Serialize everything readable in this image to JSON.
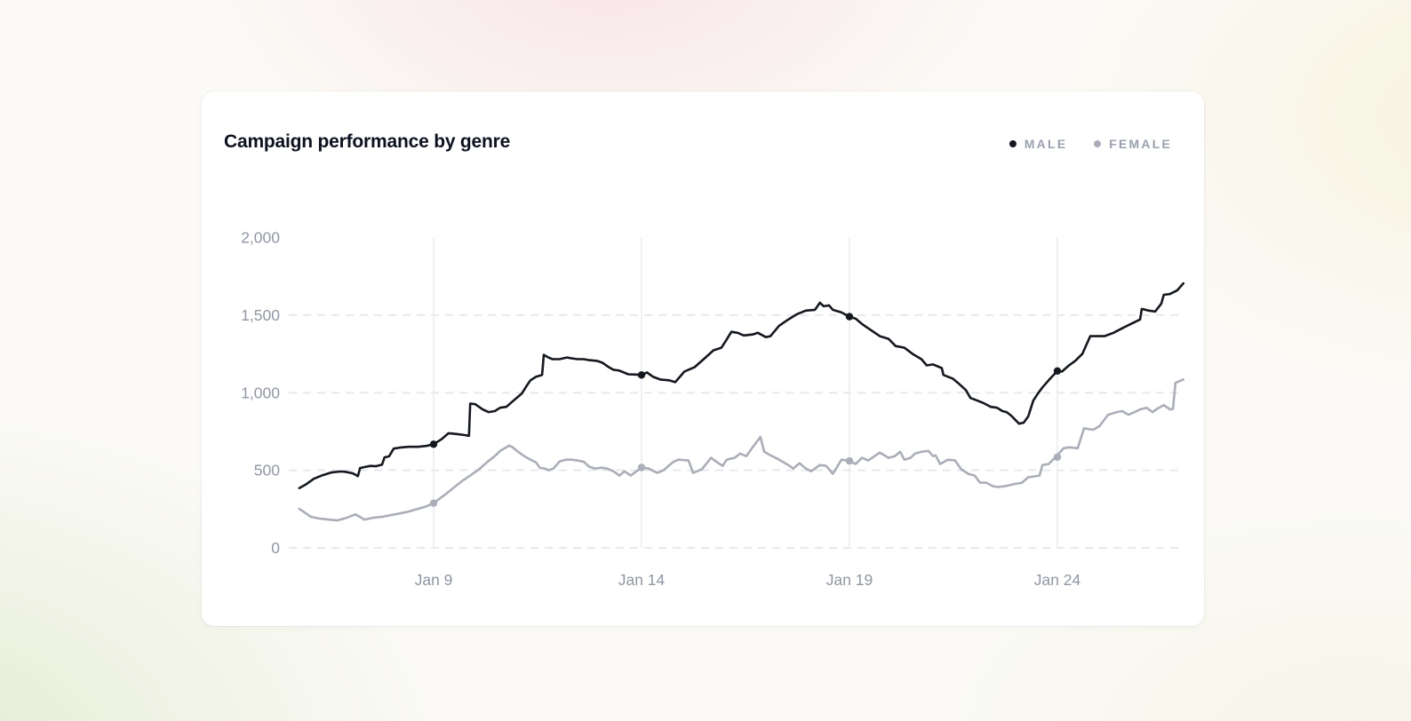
{
  "page": {
    "background_tints": {
      "pink": "#f6cdd8",
      "cream": "#f4eecb",
      "green": "#d3e1ba",
      "base": "#fbfaf6"
    }
  },
  "card": {
    "title": "Campaign performance by genre",
    "legend": [
      {
        "label": "MALE",
        "color": "#14181f"
      },
      {
        "label": "FEMALE",
        "color": "#a9aeb8"
      }
    ]
  },
  "chart_data": {
    "type": "line",
    "title": "Campaign performance by genre",
    "xlabel": "",
    "ylabel": "",
    "x_unit": "date (January, fractional day = intraday sample)",
    "xlim": [
      5.75,
      27.05
    ],
    "ylim": [
      0,
      2000
    ],
    "legend_position": "top-right",
    "grid": {
      "horizontal": "dashed",
      "vertical": "solid at x ticks only",
      "no_gridline_at": 2000
    },
    "x_ticks": [
      {
        "day": 9,
        "label": "Jan 9"
      },
      {
        "day": 14,
        "label": "Jan 14"
      },
      {
        "day": 19,
        "label": "Jan 19"
      },
      {
        "day": 24,
        "label": "Jan 24"
      }
    ],
    "y_ticks": [
      {
        "value": 0,
        "label": "0"
      },
      {
        "value": 500,
        "label": "500"
      },
      {
        "value": 1000,
        "label": "1,000"
      },
      {
        "value": 1500,
        "label": "1,500"
      },
      {
        "value": 2000,
        "label": "2,000"
      }
    ],
    "h_grid_values": [
      0,
      500,
      1000,
      1500
    ],
    "colors": {
      "grid_dashed": "#e6e9ee",
      "grid_solid": "#e9ebef",
      "axis_text": "#8f97a6"
    },
    "series": [
      {
        "name": "MALE",
        "color": "#14181f",
        "markers": [
          [
            9,
            668
          ],
          [
            14,
            1114
          ],
          [
            19,
            1490
          ],
          [
            24,
            1140
          ]
        ],
        "points": [
          [
            5.77,
            385
          ],
          [
            5.94,
            411
          ],
          [
            6.12,
            445
          ],
          [
            6.33,
            468
          ],
          [
            6.54,
            486
          ],
          [
            6.76,
            492
          ],
          [
            6.86,
            491
          ],
          [
            7.06,
            480
          ],
          [
            7.18,
            462
          ],
          [
            7.23,
            514
          ],
          [
            7.33,
            520
          ],
          [
            7.48,
            528
          ],
          [
            7.61,
            526
          ],
          [
            7.76,
            537
          ],
          [
            7.82,
            583
          ],
          [
            7.93,
            590
          ],
          [
            8.04,
            640
          ],
          [
            8.19,
            646
          ],
          [
            8.4,
            651
          ],
          [
            8.62,
            651
          ],
          [
            8.83,
            657
          ],
          [
            9.0,
            668
          ],
          [
            9.19,
            700
          ],
          [
            9.36,
            739
          ],
          [
            9.58,
            733
          ],
          [
            9.75,
            727
          ],
          [
            9.85,
            722
          ],
          [
            9.88,
            930
          ],
          [
            10.0,
            926
          ],
          [
            10.18,
            892
          ],
          [
            10.32,
            875
          ],
          [
            10.47,
            881
          ],
          [
            10.6,
            903
          ],
          [
            10.75,
            909
          ],
          [
            10.92,
            949
          ],
          [
            11.12,
            994
          ],
          [
            11.24,
            1045
          ],
          [
            11.33,
            1080
          ],
          [
            11.46,
            1102
          ],
          [
            11.61,
            1114
          ],
          [
            11.65,
            1244
          ],
          [
            11.76,
            1227
          ],
          [
            11.86,
            1216
          ],
          [
            12.03,
            1216
          ],
          [
            12.21,
            1227
          ],
          [
            12.31,
            1222
          ],
          [
            12.46,
            1216
          ],
          [
            12.61,
            1216
          ],
          [
            12.74,
            1210
          ],
          [
            12.93,
            1205
          ],
          [
            13.06,
            1193
          ],
          [
            13.21,
            1165
          ],
          [
            13.32,
            1148
          ],
          [
            13.47,
            1142
          ],
          [
            13.68,
            1119
          ],
          [
            13.85,
            1117
          ],
          [
            14.0,
            1114
          ],
          [
            14.13,
            1131
          ],
          [
            14.28,
            1102
          ],
          [
            14.45,
            1085
          ],
          [
            14.66,
            1080
          ],
          [
            14.81,
            1068
          ],
          [
            15.03,
            1136
          ],
          [
            15.13,
            1148
          ],
          [
            15.28,
            1165
          ],
          [
            15.52,
            1222
          ],
          [
            15.73,
            1273
          ],
          [
            15.92,
            1290
          ],
          [
            16.03,
            1335
          ],
          [
            16.16,
            1392
          ],
          [
            16.31,
            1386
          ],
          [
            16.46,
            1369
          ],
          [
            16.67,
            1375
          ],
          [
            16.8,
            1386
          ],
          [
            16.99,
            1358
          ],
          [
            17.1,
            1364
          ],
          [
            17.31,
            1432
          ],
          [
            17.53,
            1472
          ],
          [
            17.74,
            1506
          ],
          [
            17.95,
            1529
          ],
          [
            18.17,
            1534
          ],
          [
            18.29,
            1580
          ],
          [
            18.38,
            1557
          ],
          [
            18.51,
            1563
          ],
          [
            18.6,
            1534
          ],
          [
            18.81,
            1517
          ],
          [
            19.0,
            1490
          ],
          [
            19.15,
            1477
          ],
          [
            19.3,
            1443
          ],
          [
            19.45,
            1415
          ],
          [
            19.73,
            1364
          ],
          [
            19.94,
            1347
          ],
          [
            20.11,
            1301
          ],
          [
            20.32,
            1290
          ],
          [
            20.52,
            1250
          ],
          [
            20.73,
            1216
          ],
          [
            20.86,
            1176
          ],
          [
            21.01,
            1182
          ],
          [
            21.22,
            1159
          ],
          [
            21.26,
            1114
          ],
          [
            21.48,
            1091
          ],
          [
            21.61,
            1063
          ],
          [
            21.8,
            1017
          ],
          [
            21.91,
            966
          ],
          [
            22.08,
            949
          ],
          [
            22.23,
            932
          ],
          [
            22.4,
            909
          ],
          [
            22.55,
            903
          ],
          [
            22.68,
            881
          ],
          [
            22.78,
            875
          ],
          [
            22.89,
            852
          ],
          [
            23.08,
            800
          ],
          [
            23.19,
            807
          ],
          [
            23.3,
            847
          ],
          [
            23.42,
            949
          ],
          [
            23.53,
            994
          ],
          [
            23.64,
            1034
          ],
          [
            23.79,
            1080
          ],
          [
            24.0,
            1140
          ],
          [
            24.11,
            1136
          ],
          [
            24.28,
            1176
          ],
          [
            24.43,
            1205
          ],
          [
            24.6,
            1250
          ],
          [
            24.79,
            1364
          ],
          [
            24.92,
            1364
          ],
          [
            25.13,
            1364
          ],
          [
            25.35,
            1386
          ],
          [
            25.56,
            1415
          ],
          [
            25.77,
            1443
          ],
          [
            25.99,
            1472
          ],
          [
            26.03,
            1540
          ],
          [
            26.2,
            1529
          ],
          [
            26.35,
            1523
          ],
          [
            26.5,
            1574
          ],
          [
            26.56,
            1631
          ],
          [
            26.71,
            1636
          ],
          [
            26.88,
            1659
          ],
          [
            27.03,
            1705
          ]
        ]
      },
      {
        "name": "FEMALE",
        "color": "#a9aeb8",
        "markers": [
          [
            9,
            288
          ],
          [
            14,
            518
          ],
          [
            19,
            560
          ],
          [
            24,
            585
          ]
        ],
        "points": [
          [
            5.77,
            251
          ],
          [
            5.9,
            228
          ],
          [
            6.05,
            200
          ],
          [
            6.26,
            188
          ],
          [
            6.48,
            182
          ],
          [
            6.69,
            177
          ],
          [
            6.91,
            194
          ],
          [
            7.12,
            216
          ],
          [
            7.23,
            200
          ],
          [
            7.33,
            182
          ],
          [
            7.55,
            194
          ],
          [
            7.76,
            200
          ],
          [
            7.97,
            211
          ],
          [
            8.19,
            222
          ],
          [
            8.4,
            234
          ],
          [
            8.62,
            251
          ],
          [
            8.83,
            268
          ],
          [
            9.0,
            288
          ],
          [
            9.26,
            340
          ],
          [
            9.47,
            385
          ],
          [
            9.68,
            430
          ],
          [
            9.9,
            470
          ],
          [
            10.11,
            510
          ],
          [
            10.28,
            551
          ],
          [
            10.47,
            591
          ],
          [
            10.6,
            625
          ],
          [
            10.75,
            648
          ],
          [
            10.82,
            660
          ],
          [
            10.9,
            648
          ],
          [
            11.03,
            619
          ],
          [
            11.18,
            591
          ],
          [
            11.33,
            568
          ],
          [
            11.46,
            551
          ],
          [
            11.56,
            515
          ],
          [
            11.67,
            511
          ],
          [
            11.76,
            500
          ],
          [
            11.88,
            511
          ],
          [
            12.03,
            557
          ],
          [
            12.18,
            568
          ],
          [
            12.31,
            568
          ],
          [
            12.46,
            563
          ],
          [
            12.61,
            555
          ],
          [
            12.74,
            523
          ],
          [
            12.89,
            511
          ],
          [
            13.04,
            517
          ],
          [
            13.17,
            511
          ],
          [
            13.32,
            494
          ],
          [
            13.47,
            466
          ],
          [
            13.59,
            494
          ],
          [
            13.74,
            466
          ],
          [
            14.0,
            518
          ],
          [
            14.17,
            511
          ],
          [
            14.38,
            483
          ],
          [
            14.53,
            500
          ],
          [
            14.75,
            551
          ],
          [
            14.88,
            568
          ],
          [
            15.13,
            563
          ],
          [
            15.24,
            483
          ],
          [
            15.45,
            506
          ],
          [
            15.67,
            580
          ],
          [
            15.82,
            551
          ],
          [
            15.95,
            528
          ],
          [
            16.05,
            568
          ],
          [
            16.24,
            580
          ],
          [
            16.37,
            608
          ],
          [
            16.52,
            591
          ],
          [
            16.67,
            648
          ],
          [
            16.8,
            693
          ],
          [
            16.86,
            715
          ],
          [
            16.95,
            619
          ],
          [
            17.1,
            597
          ],
          [
            17.31,
            568
          ],
          [
            17.53,
            534
          ],
          [
            17.65,
            511
          ],
          [
            17.8,
            546
          ],
          [
            17.95,
            511
          ],
          [
            18.08,
            494
          ],
          [
            18.29,
            534
          ],
          [
            18.44,
            528
          ],
          [
            18.6,
            477
          ],
          [
            18.81,
            568
          ],
          [
            19.0,
            560
          ],
          [
            19.15,
            540
          ],
          [
            19.3,
            580
          ],
          [
            19.45,
            563
          ],
          [
            19.73,
            614
          ],
          [
            19.94,
            580
          ],
          [
            20.09,
            591
          ],
          [
            20.22,
            619
          ],
          [
            20.32,
            568
          ],
          [
            20.47,
            580
          ],
          [
            20.58,
            608
          ],
          [
            20.73,
            619
          ],
          [
            20.9,
            625
          ],
          [
            21.01,
            591
          ],
          [
            21.07,
            597
          ],
          [
            21.18,
            540
          ],
          [
            21.37,
            568
          ],
          [
            21.54,
            563
          ],
          [
            21.69,
            506
          ],
          [
            21.86,
            477
          ],
          [
            22.01,
            466
          ],
          [
            22.14,
            420
          ],
          [
            22.29,
            420
          ],
          [
            22.44,
            398
          ],
          [
            22.57,
            392
          ],
          [
            22.76,
            398
          ],
          [
            22.93,
            409
          ],
          [
            23.15,
            420
          ],
          [
            23.3,
            455
          ],
          [
            23.42,
            460
          ],
          [
            23.57,
            466
          ],
          [
            23.64,
            534
          ],
          [
            23.79,
            540
          ],
          [
            23.96,
            585
          ],
          [
            24.15,
            642
          ],
          [
            24.28,
            648
          ],
          [
            24.49,
            642
          ],
          [
            24.64,
            770
          ],
          [
            24.86,
            761
          ],
          [
            25.01,
            784
          ],
          [
            25.22,
            858
          ],
          [
            25.43,
            875
          ],
          [
            25.56,
            881
          ],
          [
            25.71,
            858
          ],
          [
            25.86,
            875
          ],
          [
            25.99,
            892
          ],
          [
            26.14,
            903
          ],
          [
            26.29,
            875
          ],
          [
            26.41,
            898
          ],
          [
            26.56,
            920
          ],
          [
            26.71,
            892
          ],
          [
            26.78,
            895
          ],
          [
            26.84,
            1063
          ],
          [
            27.03,
            1085
          ]
        ]
      }
    ]
  }
}
